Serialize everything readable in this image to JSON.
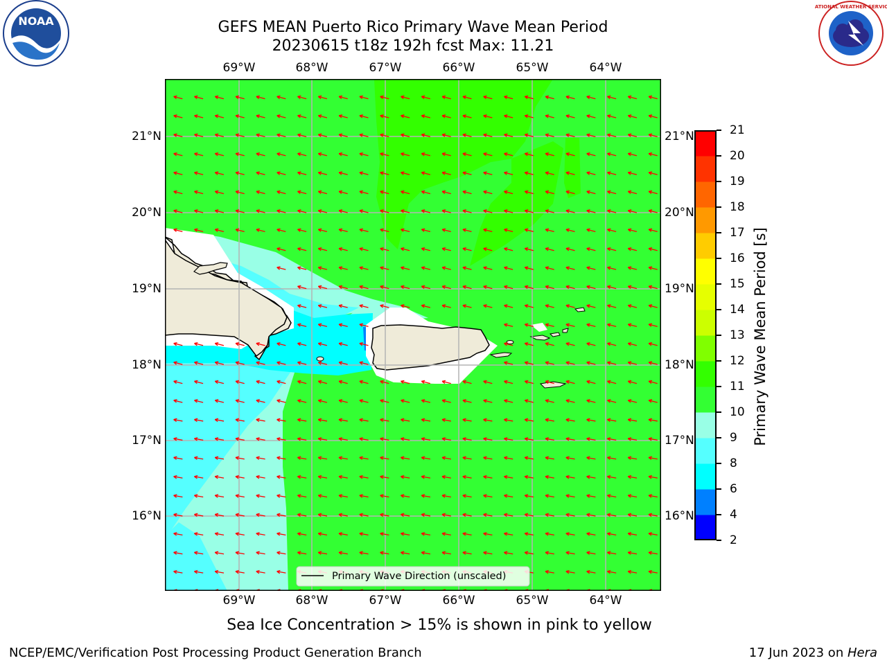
{
  "title": {
    "line1": "GEFS MEAN Puerto Rico Primary Wave Mean Period",
    "line2": "20230615 t18z 192h fcst   Max: 11.21"
  },
  "map": {
    "lon_labels": [
      "69°W",
      "68°W",
      "67°W",
      "66°W",
      "65°W",
      "64°W"
    ],
    "lat_labels": [
      "21°N",
      "20°N",
      "19°N",
      "18°N",
      "17°N",
      "16°N"
    ],
    "lon_range": [
      -70.0,
      -63.2
    ],
    "lat_range": [
      15.1,
      21.8
    ],
    "legend_label": "Primary Wave Direction (unscaled)",
    "arrow_color": "#ff0000",
    "land_color": "#efebd9",
    "ocean_color": "#33ff33"
  },
  "colorbar": {
    "label": "Primary Wave Mean Period [s]",
    "ticks": [
      "2",
      "4",
      "6",
      "8",
      "9",
      "10",
      "11",
      "12",
      "13",
      "14",
      "15",
      "16",
      "17",
      "18",
      "19",
      "20",
      "21"
    ],
    "colors": [
      "#0000ff",
      "#0080ff",
      "#00ffff",
      "#55ffff",
      "#99ffe6",
      "#33ff33",
      "#33ff00",
      "#80ff00",
      "#ccff00",
      "#e6ff00",
      "#ffff00",
      "#ffcc00",
      "#ff9900",
      "#ff6600",
      "#ff3300",
      "#ff0000"
    ]
  },
  "subtitle": "Sea Ice Concentration > 15% is shown in pink to yellow",
  "footer": {
    "left": "NCEP/EMC/Verification Post Processing Product Generation Branch",
    "right_date": "17 Jun 2023 on ",
    "right_host": "Hera"
  },
  "logos": {
    "left": "NOAA",
    "right_text": "NATIONAL WEATHER SERVICE"
  }
}
